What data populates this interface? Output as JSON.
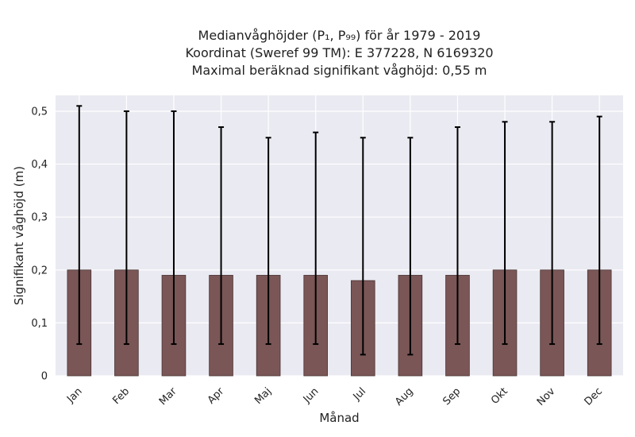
{
  "title": {
    "line1": "Medianvåghöjder (P₁, P₉₉) för år 1979 - 2019",
    "line2": "Koordinat (Sweref 99 TM): E 377228, N 6169320",
    "line3": "Maximal beräknad signifikant våghöjd: 0,55 m"
  },
  "chart_data": {
    "type": "bar",
    "xlabel": "Månad",
    "ylabel": "Signifikant våghöjd (m)",
    "categories": [
      "Jan",
      "Feb",
      "Mar",
      "Apr",
      "Maj",
      "Jun",
      "Jul",
      "Aug",
      "Sep",
      "Okt",
      "Nov",
      "Dec"
    ],
    "values": [
      0.2,
      0.2,
      0.19,
      0.19,
      0.19,
      0.19,
      0.18,
      0.19,
      0.19,
      0.2,
      0.2,
      0.2
    ],
    "error_low": [
      0.06,
      0.06,
      0.06,
      0.06,
      0.06,
      0.06,
      0.04,
      0.04,
      0.06,
      0.06,
      0.06,
      0.06
    ],
    "error_high": [
      0.51,
      0.5,
      0.5,
      0.47,
      0.45,
      0.46,
      0.45,
      0.45,
      0.47,
      0.48,
      0.48,
      0.49
    ],
    "ylim": [
      0,
      0.53
    ],
    "yticks": [
      0,
      0.1,
      0.2,
      0.3,
      0.4,
      0.5
    ],
    "ytick_labels": [
      "0",
      "0,1",
      "0,2",
      "0,3",
      "0,4",
      "0,5"
    ],
    "grid": true,
    "colors": {
      "bar": "#7a5656",
      "bar_edge": "#4a3535",
      "error": "#000000",
      "background": "#eaeaf2",
      "grid": "#ffffff"
    }
  }
}
